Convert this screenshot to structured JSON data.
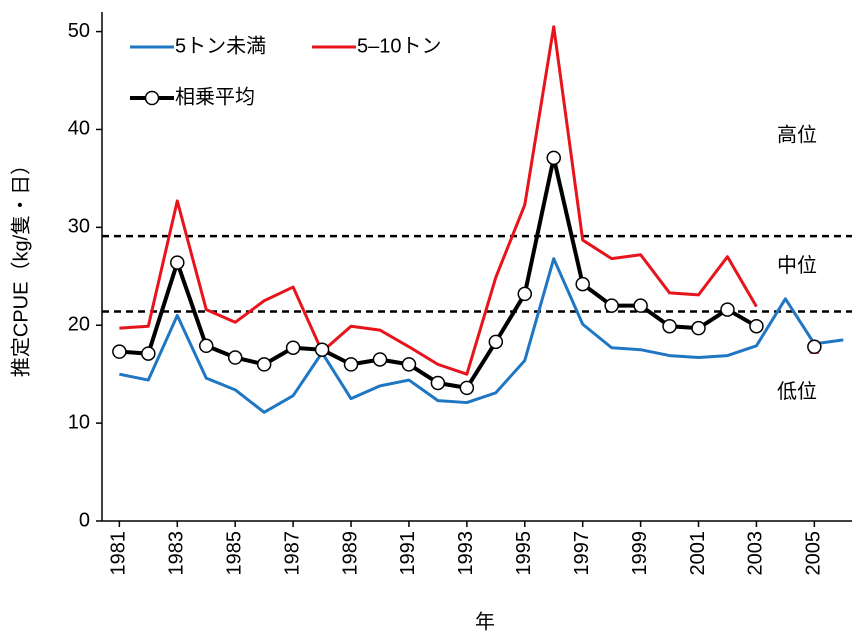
{
  "chart_data": {
    "type": "line",
    "ylabel": "推定CPUE（kg/隻・日）",
    "xlabel": "年",
    "x": [
      1981,
      1982,
      1983,
      1984,
      1985,
      1986,
      1987,
      1988,
      1989,
      1990,
      1991,
      1992,
      1993,
      1994,
      1995,
      1996,
      1997,
      1998,
      1999,
      2000,
      2001,
      2002,
      2003,
      2004,
      2005,
      2006
    ],
    "series": [
      {
        "name": "5トン未満",
        "color": "#1f77c4",
        "values": [
          15.0,
          14.4,
          21.0,
          14.6,
          13.4,
          11.1,
          12.8,
          17.2,
          12.5,
          13.8,
          14.4,
          12.3,
          12.1,
          13.1,
          16.4,
          26.8,
          20.1,
          17.7,
          17.5,
          16.9,
          16.7,
          16.9,
          17.9,
          22.7,
          18.1,
          18.5
        ]
      },
      {
        "name": "5–10トン",
        "color": "#e8141c",
        "values": [
          19.7,
          19.9,
          32.7,
          21.6,
          20.3,
          22.5,
          23.9,
          17.3,
          19.9,
          19.5,
          17.8,
          16.0,
          15.0,
          24.9,
          32.3,
          50.5,
          28.7,
          26.8,
          27.2,
          23.3,
          23.1,
          27.0,
          21.9,
          null,
          17.5,
          null
        ]
      },
      {
        "name": "相乗平均",
        "color": "#000000",
        "markers": true,
        "values": [
          17.3,
          17.1,
          26.4,
          17.9,
          16.7,
          16.0,
          17.7,
          17.5,
          16.0,
          16.5,
          16.0,
          14.1,
          13.6,
          18.3,
          23.2,
          37.1,
          24.2,
          22.0,
          22.0,
          19.9,
          19.7,
          21.6,
          19.9,
          null,
          17.8,
          null
        ]
      }
    ],
    "xlim": [
      1980.4,
      2006.3
    ],
    "xticks": [
      1981,
      1983,
      1985,
      1987,
      1989,
      1991,
      1993,
      1995,
      1997,
      1999,
      2001,
      2003,
      2005
    ],
    "ylim": [
      0,
      52
    ],
    "yticks": [
      0,
      10,
      20,
      30,
      40,
      50
    ],
    "reference_lines": [
      29.1,
      21.4
    ],
    "annotations": [
      {
        "text": "高位",
        "y": 39.3
      },
      {
        "text": "中位",
        "y": 26.0
      },
      {
        "text": "低位",
        "y": 13.1
      }
    ],
    "legend": "upper left"
  }
}
